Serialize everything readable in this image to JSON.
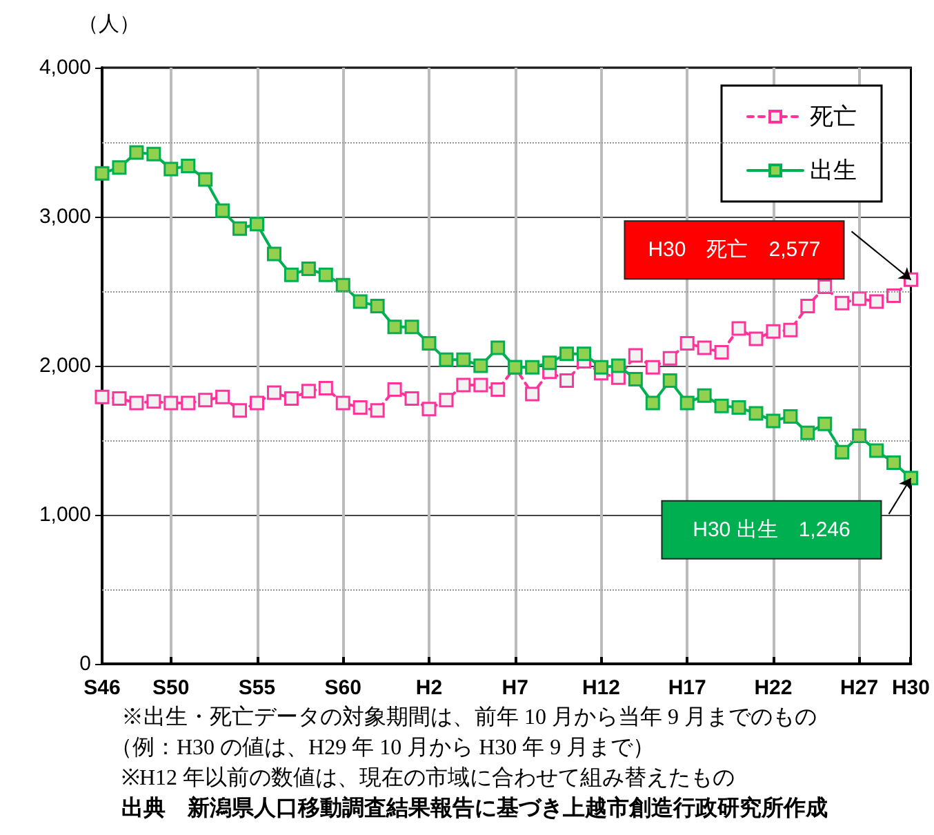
{
  "chart_data": {
    "type": "line",
    "ylabel": "（人）",
    "categories": [
      "S46",
      null,
      null,
      null,
      "S50",
      null,
      null,
      null,
      null,
      "S55",
      null,
      null,
      null,
      null,
      "S60",
      null,
      null,
      null,
      null,
      "H2",
      null,
      null,
      null,
      null,
      "H7",
      null,
      null,
      null,
      null,
      "H12",
      null,
      null,
      null,
      null,
      "H17",
      null,
      null,
      null,
      null,
      "H22",
      null,
      null,
      null,
      null,
      "H27",
      null,
      null,
      "H30"
    ],
    "series": [
      {
        "name": "死亡",
        "color": "#ff3399",
        "line_style": "dashed",
        "values": [
          1790,
          1780,
          1750,
          1760,
          1750,
          1750,
          1770,
          1790,
          1700,
          1750,
          1820,
          1780,
          1830,
          1850,
          1750,
          1720,
          1700,
          1840,
          1780,
          1710,
          1770,
          1870,
          1870,
          1840,
          1990,
          1810,
          1960,
          1900,
          2030,
          1950,
          1920,
          2070,
          1990,
          2050,
          2150,
          2120,
          2090,
          2250,
          2180,
          2230,
          2240,
          2400,
          2530,
          2420,
          2450,
          2430,
          2470,
          2577
        ]
      },
      {
        "name": "出生",
        "color": "#00b050",
        "line_style": "solid",
        "values": [
          3290,
          3330,
          3430,
          3420,
          3320,
          3340,
          3250,
          3040,
          2920,
          2950,
          2750,
          2610,
          2650,
          2610,
          2540,
          2430,
          2400,
          2260,
          2260,
          2150,
          2040,
          2040,
          2000,
          2120,
          1990,
          1990,
          2020,
          2080,
          2080,
          1990,
          2000,
          1910,
          1750,
          1900,
          1750,
          1800,
          1730,
          1720,
          1680,
          1630,
          1660,
          1550,
          1610,
          1420,
          1530,
          1430,
          1350,
          1246
        ]
      }
    ],
    "ylim": [
      0,
      4000
    ],
    "yticks": [
      {
        "value": 0,
        "label": "0"
      },
      {
        "value": 500,
        "label": null
      },
      {
        "value": 1000,
        "label": "1,000"
      },
      {
        "value": 1500,
        "label": null
      },
      {
        "value": 2000,
        "label": "2,000"
      },
      {
        "value": 2500,
        "label": null
      },
      {
        "value": 3000,
        "label": "3,000"
      },
      {
        "value": 3500,
        "label": null
      },
      {
        "value": 4000,
        "label": "4,000"
      }
    ],
    "grid": true,
    "legend": "top right",
    "marker": "square",
    "annotations": [
      "H30　死亡　2,577",
      "H30 出生　1,246",
      "※出生・死亡データの対象期間は、前年 10 月から当年 9 月までのもの",
      "（例：H30 の値は、H29 年 10 月から H30 年 9 月まで）",
      "※H12 年以前の数値は、現在の市域に合わせて組み替えたもの",
      "出典　新潟県人口移動調査結果報告に基づき上越市創造行政研究所作成"
    ]
  }
}
